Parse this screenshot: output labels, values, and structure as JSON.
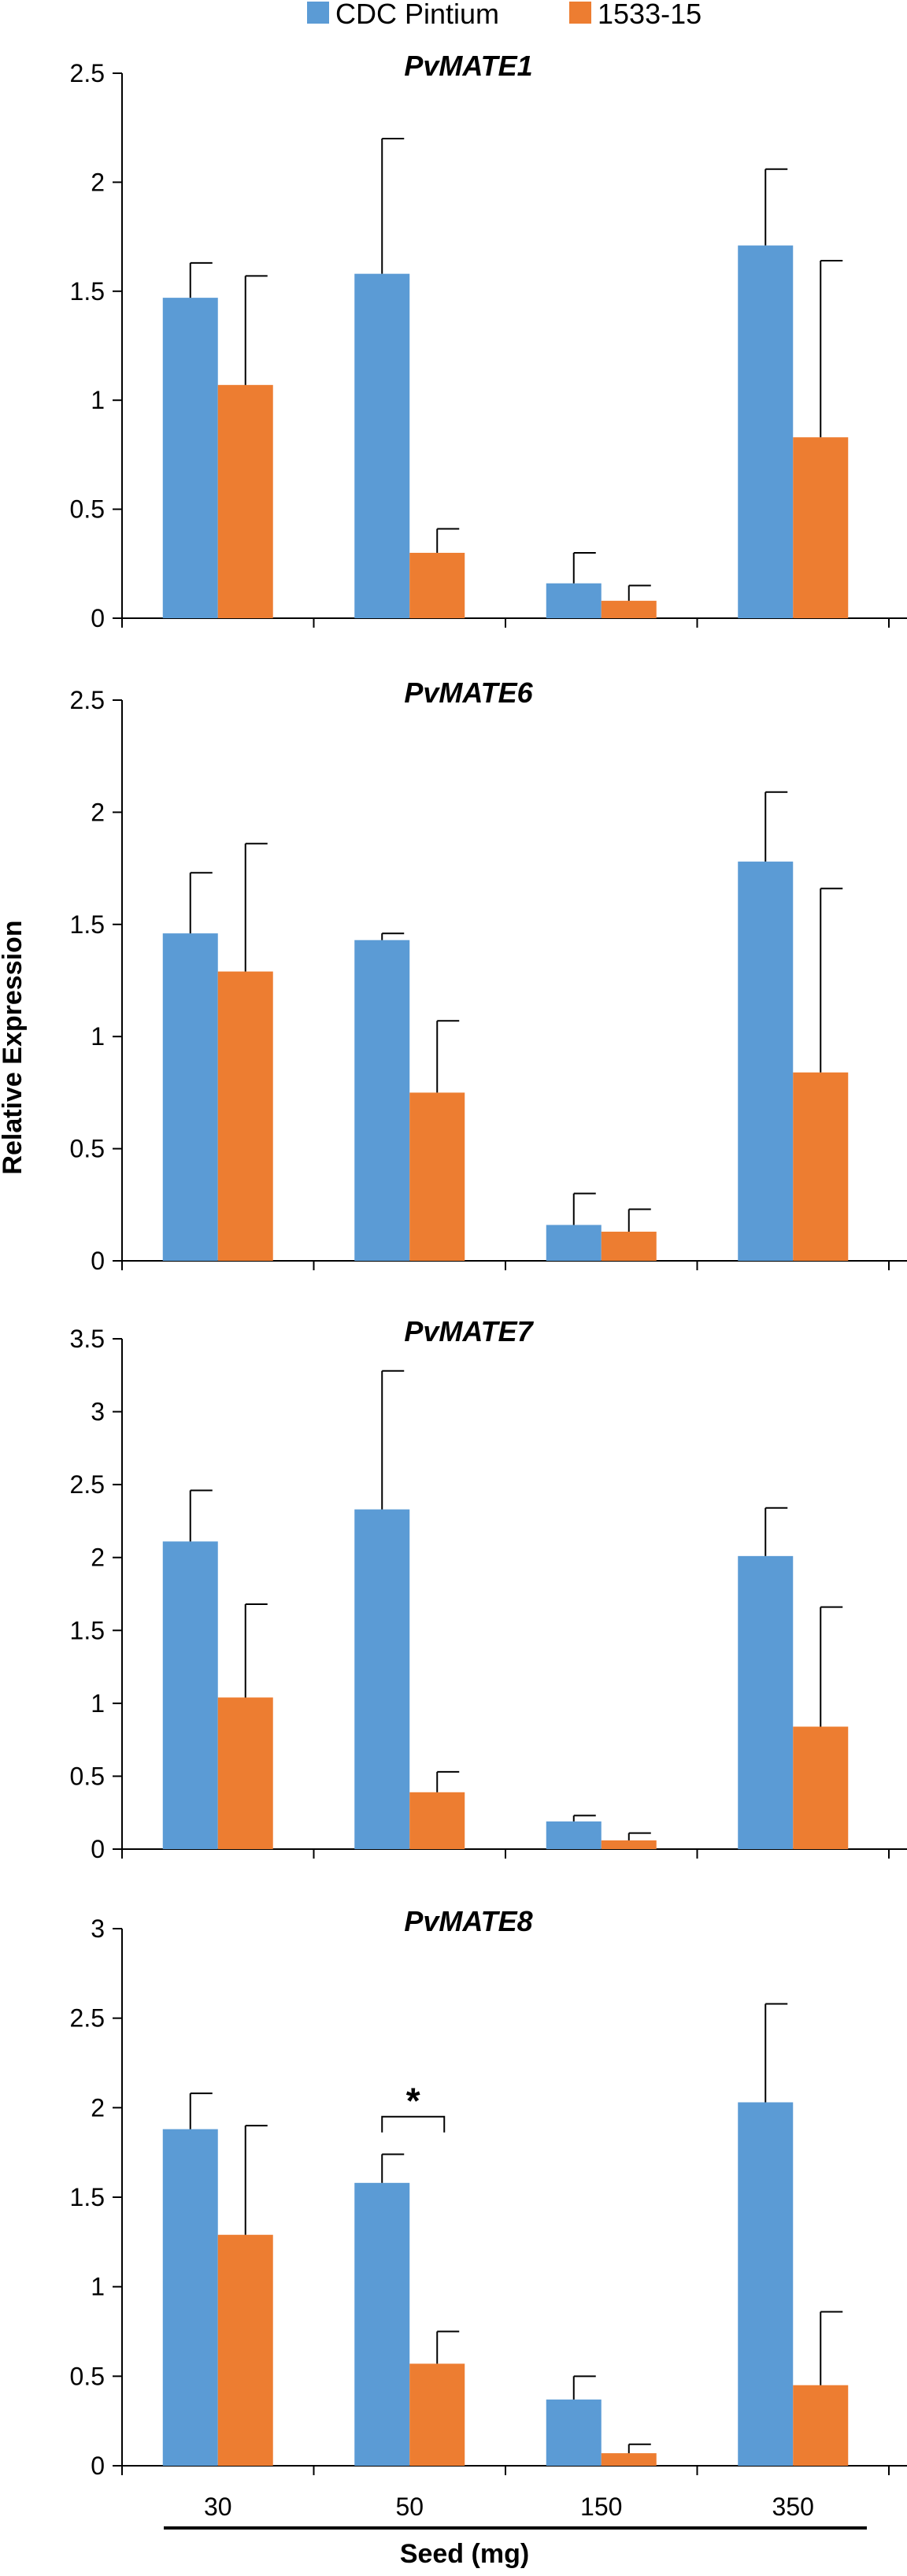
{
  "chart_data": {
    "type": "bar",
    "legend": {
      "placement": "top-center",
      "entries": [
        {
          "name": "CDC Pintium",
          "color": "#5b9bd5"
        },
        {
          "name": "1533-15",
          "color": "#ed7d31"
        }
      ]
    },
    "ylabel": "Relative Expression",
    "xlabel": "Seed (mg)",
    "categories": [
      "30",
      "50",
      "150",
      "350"
    ],
    "grid": false,
    "panels": [
      {
        "title": "PvMATE1",
        "ylim": [
          0,
          2.5
        ],
        "yticks": [
          "0",
          "0.5",
          "1",
          "1.5",
          "2",
          "2.5"
        ],
        "series": [
          {
            "name": "CDC Pintium",
            "values": [
              1.47,
              1.58,
              0.16,
              1.71
            ],
            "errors": [
              0.16,
              0.62,
              0.14,
              0.35
            ]
          },
          {
            "name": "1533-15",
            "values": [
              1.07,
              0.3,
              0.08,
              0.83
            ],
            "errors": [
              0.5,
              0.11,
              0.07,
              0.81
            ]
          }
        ]
      },
      {
        "title": "PvMATE6",
        "ylim": [
          0,
          2.5
        ],
        "yticks": [
          "0",
          "0.5",
          "1",
          "1.5",
          "2",
          "2.5"
        ],
        "series": [
          {
            "name": "CDC Pintium",
            "values": [
              1.46,
              1.43,
              0.16,
              1.78
            ],
            "errors": [
              0.27,
              0.03,
              0.14,
              0.31
            ]
          },
          {
            "name": "1533-15",
            "values": [
              1.29,
              0.75,
              0.13,
              0.84
            ],
            "errors": [
              0.57,
              0.32,
              0.1,
              0.82
            ]
          }
        ]
      },
      {
        "title": "PvMATE7",
        "ylim": [
          0,
          3.5
        ],
        "yticks": [
          "0",
          "0.5",
          "1",
          "1.5",
          "2",
          "2.5",
          "3",
          "3.5"
        ],
        "series": [
          {
            "name": "CDC Pintium",
            "values": [
              2.11,
              2.33,
              0.19,
              2.01
            ],
            "errors": [
              0.35,
              0.95,
              0.04,
              0.33
            ]
          },
          {
            "name": "1533-15",
            "values": [
              1.04,
              0.39,
              0.06,
              0.84
            ],
            "errors": [
              0.64,
              0.14,
              0.05,
              0.82
            ]
          }
        ]
      },
      {
        "title": "PvMATE8",
        "ylim": [
          0,
          3
        ],
        "yticks": [
          "0",
          "0.5",
          "1",
          "1.5",
          "2",
          "2.5",
          "3"
        ],
        "series": [
          {
            "name": "CDC Pintium",
            "values": [
              1.88,
              1.58,
              0.37,
              2.03
            ],
            "errors": [
              0.2,
              0.16,
              0.13,
              0.55
            ]
          },
          {
            "name": "1533-15",
            "values": [
              1.29,
              0.57,
              0.07,
              0.45
            ],
            "errors": [
              0.61,
              0.18,
              0.05,
              0.41
            ]
          }
        ],
        "annotations": [
          {
            "text": "*",
            "category": "50",
            "type": "significance-bracket"
          }
        ]
      }
    ]
  }
}
